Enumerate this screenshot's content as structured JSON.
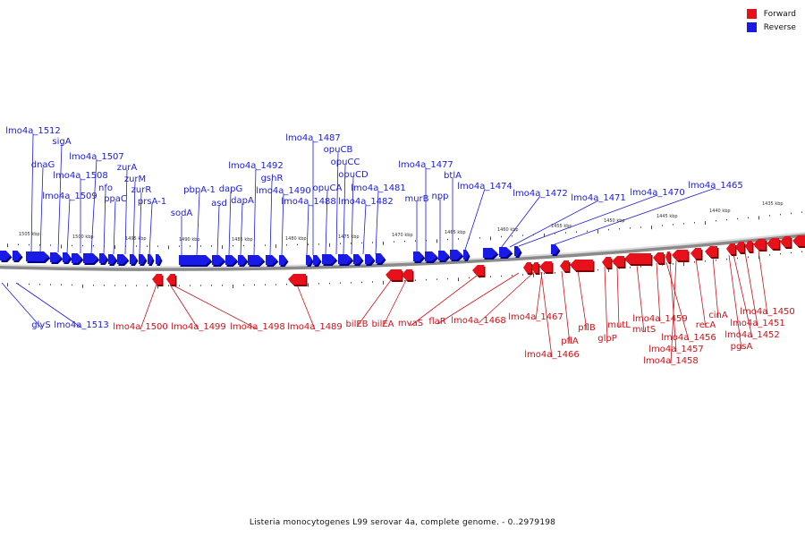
{
  "legend": {
    "forward_label": "Forward",
    "reverse_label": "Reverse"
  },
  "colors": {
    "forward": "#e8101a",
    "reverse": "#1a1ae6"
  },
  "caption": "Listeria monocytogenes L99 serovar 4a, complete genome. - 0..2979198",
  "scale_labels": [
    "1505 kbp",
    "1500 kbp",
    "1495 kbp",
    "1490 kbp",
    "1485 kbp",
    "1480 kbp",
    "1475 kbp",
    "1470 kbp",
    "1465 kbp",
    "1460 kbp",
    "1455 kbp",
    "1450 kbp",
    "1445 kbp",
    "1440 kbp",
    "1435 kbp"
  ],
  "reverse_top_labels": [
    "lmo4a_1512",
    "sigA",
    "dnaG",
    "lmo4a_1507",
    "lmo4a_1508",
    "nfo",
    "lmo4a_1509",
    "ppaC",
    "zurA",
    "zurM",
    "zurR",
    "prsA-1",
    "sodA",
    "pbpA-1",
    "dapG",
    "asd",
    "dapA",
    "lmo4a_1492",
    "gshR",
    "lmo4a_1490",
    "lmo4a_1488",
    "lmo4a_1487",
    "opuCB",
    "opuCC",
    "opuCA",
    "opuCD",
    "lmo4a_1481",
    "lmo4a_1482",
    "lmo4a_1477",
    "murB",
    "npp",
    "btlA",
    "lmo4a_1474",
    "lmo4a_1472",
    "lmo4a_1471",
    "lmo4a_1470",
    "lmo4a_1465"
  ],
  "reverse_bottom_labels": [
    "glyS",
    "lmo4a_1513"
  ],
  "forward_labels": [
    "lmo4a_1500",
    "lmo4a_1499",
    "lmo4a_1498",
    "lmo4a_1489",
    "bilEB",
    "bilEA",
    "mvaS",
    "flaR",
    "lmo4a_1468",
    "lmo4a_1467",
    "lmo4a_1466",
    "pflA",
    "pflB",
    "glpP",
    "mutL",
    "mutS",
    "lmo4a_1459",
    "lmo4a_1456",
    "lmo4a_1457",
    "lmo4a_1458",
    "recA",
    "cinA",
    "lmo4a_1452",
    "pgsA",
    "lmo4a_1451",
    "lmo4a_1450"
  ]
}
